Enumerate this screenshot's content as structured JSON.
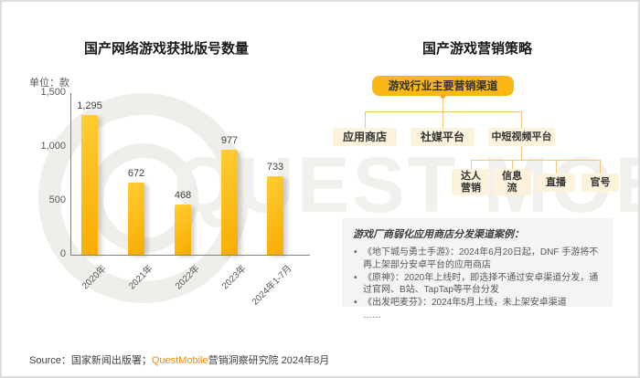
{
  "page": {
    "watermark": "QUEST MOBILE",
    "source_prefix": "Source：国家新闻出版署；",
    "source_brand": "QuestMobile",
    "source_suffix": "营销洞察研究院 2024年8月"
  },
  "chart_data": {
    "type": "bar",
    "title": "国产网络游戏获批版号数量",
    "unit_label": "单位：款",
    "categories": [
      "2020年",
      "2021年",
      "2022年",
      "2023年",
      "2024年1-7月"
    ],
    "values": [
      1295,
      672,
      468,
      977,
      733
    ],
    "value_labels": [
      "1,295",
      "672",
      "468",
      "977",
      "733"
    ],
    "ylabel": "款",
    "ylim": [
      0,
      1500
    ],
    "ytick_values": [
      1500,
      1000,
      500,
      0
    ],
    "ytick_labels": [
      "1,500",
      "1,000",
      "500",
      "0"
    ],
    "grid": false,
    "legend": false,
    "bar_color_top": "#FFCE33",
    "bar_color_bottom": "#F8AB00"
  },
  "right_panel": {
    "title": "国产游戏营销策略",
    "tree": {
      "root": "游戏行业主要营销渠道",
      "level1": [
        "应用商店",
        "社媒平台",
        "中短视频平台"
      ],
      "level2_parent": "中短视频平台",
      "level2": [
        "达人\n营销",
        "信息\n流",
        "直播",
        "官号"
      ]
    },
    "case_box": {
      "title": "游戏厂商弱化应用商店分发渠道案例：",
      "bullets": [
        "《地下城与勇士手游》：2024年6月20日起，DNF 手游将不再上架部分安卓平台的应用商店",
        "《原神》：2020年上线时，即选择不通过安卓渠道分发，通过官网、B站、TapTap等平台分发",
        "《出发吧麦芬》：2024年5月上线，未上架安卓渠道"
      ],
      "ellipsis": "……"
    }
  }
}
